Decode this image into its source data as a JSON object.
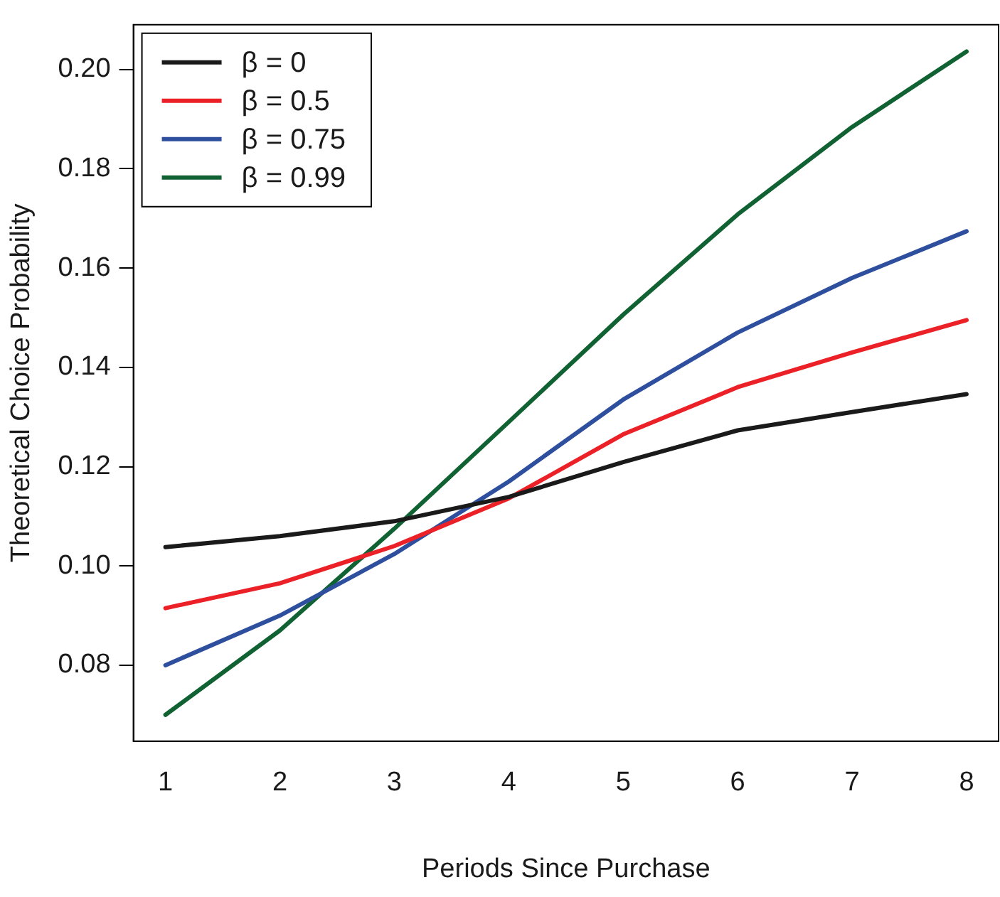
{
  "chart_data": {
    "type": "line",
    "xlabel": "Periods Since Purchase",
    "ylabel": "Theoretical Choice Probability",
    "x": [
      1,
      2,
      3,
      4,
      5,
      6,
      7,
      8
    ],
    "xlim": [
      0.72,
      8.28
    ],
    "xticks": [
      1,
      2,
      3,
      4,
      5,
      6,
      7,
      8
    ],
    "ylim": [
      0.0647,
      0.209
    ],
    "yticks": [
      {
        "value": 0.08,
        "label": "0.08"
      },
      {
        "value": 0.1,
        "label": "0.10"
      },
      {
        "value": 0.12,
        "label": "0.12"
      },
      {
        "value": 0.14,
        "label": "0.14"
      },
      {
        "value": 0.16,
        "label": "0.16"
      },
      {
        "value": 0.18,
        "label": "0.18"
      },
      {
        "value": 0.2,
        "label": "0.20"
      }
    ],
    "grid": false,
    "legend": "top left",
    "marker": "none",
    "line_style": "solid",
    "series": [
      {
        "name": "β = 0",
        "color": "#1a1a1a",
        "values": [
          0.1038,
          0.106,
          0.109,
          0.1139,
          0.1209,
          0.1273,
          0.131,
          0.1346
        ]
      },
      {
        "name": "β = 0.5",
        "color": "#ec2027",
        "values": [
          0.0915,
          0.0965,
          0.104,
          0.1136,
          0.1265,
          0.136,
          0.143,
          0.1495
        ]
      },
      {
        "name": "β = 0.75",
        "color": "#2e4f9e",
        "values": [
          0.08,
          0.09,
          0.1024,
          0.117,
          0.1335,
          0.147,
          0.158,
          0.1674
        ]
      },
      {
        "name": "β = 0.99",
        "color": "#116233",
        "values": [
          0.07,
          0.087,
          0.1075,
          0.129,
          0.1506,
          0.1708,
          0.1884,
          0.2036
        ]
      }
    ]
  }
}
